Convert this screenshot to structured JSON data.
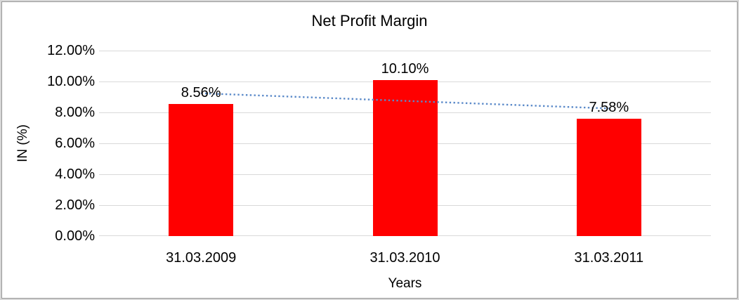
{
  "chart_data": {
    "type": "bar",
    "title": "Net Profit Margin",
    "xlabel": "Years",
    "ylabel": "IN (%)",
    "categories": [
      "31.03.2009",
      "31.03.2010",
      "31.03.2011"
    ],
    "values": [
      8.56,
      10.1,
      7.58
    ],
    "data_labels": [
      "8.56%",
      "10.10%",
      "7.58%"
    ],
    "y_ticks": [
      {
        "label": "12.00%",
        "value": 12
      },
      {
        "label": "10.00%",
        "value": 10
      },
      {
        "label": "8.00%",
        "value": 8
      },
      {
        "label": "6.00%",
        "value": 6
      },
      {
        "label": "4.00%",
        "value": 4
      },
      {
        "label": "2.00%",
        "value": 2
      },
      {
        "label": "0.00%",
        "value": 0
      }
    ],
    "ylim": [
      0,
      12
    ],
    "grid": true,
    "legend": "none",
    "bar_color": "#ff0000",
    "gridline_color": "#d9d9d9",
    "text_color": "#000000",
    "trendline": {
      "present": true,
      "kind": "linear",
      "line_style": "dotted",
      "color": "#5b8ac9"
    }
  }
}
